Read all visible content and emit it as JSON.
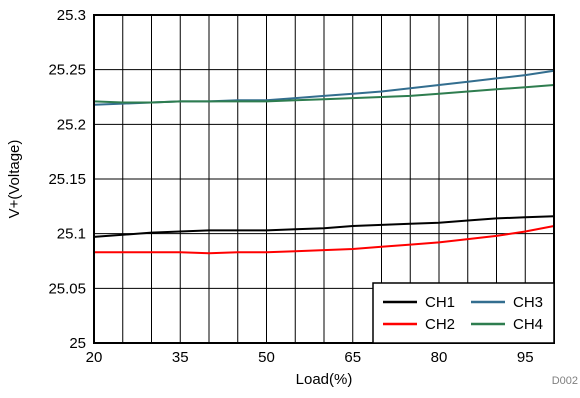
{
  "chart_data": {
    "type": "line",
    "xlabel": "Load(%)",
    "ylabel": "V+(Voltage)",
    "xlim": [
      20,
      100
    ],
    "ylim": [
      25,
      25.3
    ],
    "x_ticks": [
      "20",
      "35",
      "50",
      "65",
      "80",
      "95"
    ],
    "x_tick_values": [
      20,
      35,
      50,
      65,
      80,
      95
    ],
    "y_ticks": [
      "25",
      "25.05",
      "25.1",
      "25.15",
      "25.2",
      "25.25",
      "25.3"
    ],
    "y_tick_values": [
      25,
      25.05,
      25.1,
      25.15,
      25.2,
      25.25,
      25.3
    ],
    "grid": true,
    "legend_position": "bottom-right",
    "figure_id": "D002",
    "series": [
      {
        "name": "CH1",
        "color": "#000000",
        "x": [
          20,
          25,
          30,
          35,
          40,
          45,
          50,
          55,
          60,
          65,
          70,
          75,
          80,
          85,
          90,
          95,
          100
        ],
        "y": [
          25.097,
          25.099,
          25.101,
          25.102,
          25.103,
          25.103,
          25.103,
          25.104,
          25.105,
          25.107,
          25.108,
          25.109,
          25.11,
          25.112,
          25.114,
          25.115,
          25.116
        ]
      },
      {
        "name": "CH2",
        "color": "#ff0000",
        "x": [
          20,
          25,
          30,
          35,
          40,
          45,
          50,
          55,
          60,
          65,
          70,
          75,
          80,
          85,
          90,
          95,
          100
        ],
        "y": [
          25.083,
          25.083,
          25.083,
          25.083,
          25.082,
          25.083,
          25.083,
          25.084,
          25.085,
          25.086,
          25.088,
          25.09,
          25.092,
          25.095,
          25.098,
          25.102,
          25.107
        ]
      },
      {
        "name": "CH3",
        "color": "#336e8f",
        "x": [
          20,
          25,
          30,
          35,
          40,
          45,
          50,
          55,
          60,
          65,
          70,
          75,
          80,
          85,
          90,
          95,
          100
        ],
        "y": [
          25.218,
          25.219,
          25.22,
          25.221,
          25.221,
          25.222,
          25.222,
          25.224,
          25.226,
          25.228,
          25.23,
          25.233,
          25.236,
          25.239,
          25.242,
          25.245,
          25.249
        ]
      },
      {
        "name": "CH4",
        "color": "#2e7d4f",
        "x": [
          20,
          25,
          30,
          35,
          40,
          45,
          50,
          55,
          60,
          65,
          70,
          75,
          80,
          85,
          90,
          95,
          100
        ],
        "y": [
          25.221,
          25.22,
          25.22,
          25.221,
          25.221,
          25.221,
          25.221,
          25.222,
          25.223,
          25.224,
          25.225,
          25.226,
          25.228,
          25.23,
          25.232,
          25.234,
          25.236
        ]
      }
    ]
  }
}
